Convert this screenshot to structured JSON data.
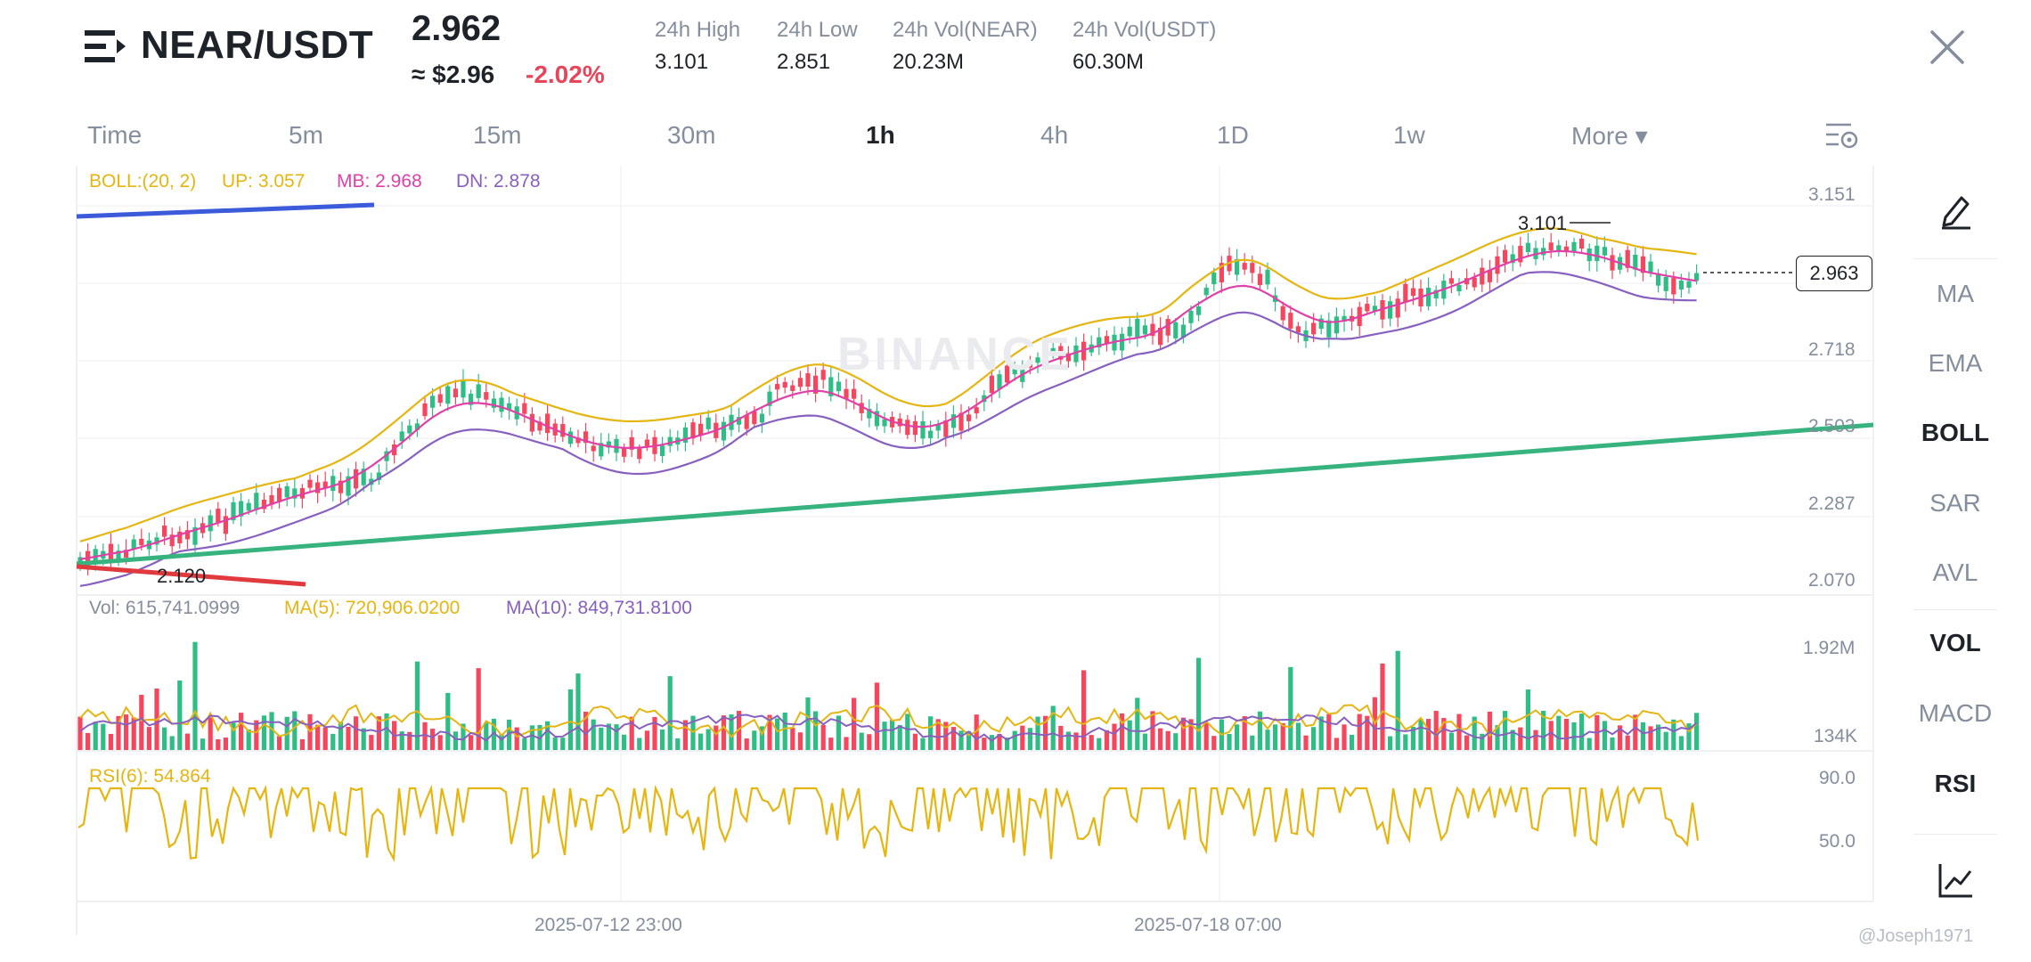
{
  "header": {
    "pair": "NEAR/USDT",
    "price": "2.962",
    "usd_price": "≈ $2.96",
    "change": "-2.02%",
    "stats": [
      {
        "label": "24h High",
        "value": "3.101"
      },
      {
        "label": "24h Low",
        "value": "2.851"
      },
      {
        "label": "24h Vol(NEAR)",
        "value": "20.23M"
      },
      {
        "label": "24h Vol(USDT)",
        "value": "60.30M"
      }
    ]
  },
  "timeframes": [
    "Time",
    "5m",
    "15m",
    "30m",
    "1h",
    "4h",
    "1D",
    "1w",
    "More ▾"
  ],
  "active_timeframe": "1h",
  "boll": {
    "label": "BOLL:(20, 2)",
    "up": "UP: 3.057",
    "mb": "MB: 2.968",
    "dn": "DN: 2.878"
  },
  "vol": {
    "label": "Vol: 615,741.0999",
    "ma5": "MA(5): 720,906.0200",
    "ma10": "MA(10): 849,731.8100"
  },
  "rsi": {
    "label": "RSI(6): 54.864"
  },
  "price_axis": [
    "3.151",
    "2.718",
    "2.503",
    "2.287",
    "2.070"
  ],
  "vol_axis": [
    "1.92M",
    "134K"
  ],
  "rsi_axis": [
    "90.0",
    "50.0"
  ],
  "time_axis": [
    "2025-07-12 23:00",
    "2025-07-18 07:00"
  ],
  "current_price_label": "2.963",
  "high_marker": "3.101",
  "low_marker": "2.120",
  "watermark": "BINANCE",
  "sidebar": [
    "MA",
    "EMA",
    "BOLL",
    "SAR",
    "AVL",
    "VOL",
    "MACD",
    "RSI"
  ],
  "sidebar_active": [
    "BOLL",
    "VOL",
    "RSI"
  ],
  "credit": "@Joseph1971",
  "colors": {
    "up": "#2ebd85",
    "down": "#f6465d",
    "boll_up": "#e5b511",
    "boll_mb": "#e040a7",
    "boll_dn": "#8860bf",
    "trend_green": "#36b37e",
    "trend_blue": "#3b5bdb",
    "trend_red": "#e03a3e"
  }
}
